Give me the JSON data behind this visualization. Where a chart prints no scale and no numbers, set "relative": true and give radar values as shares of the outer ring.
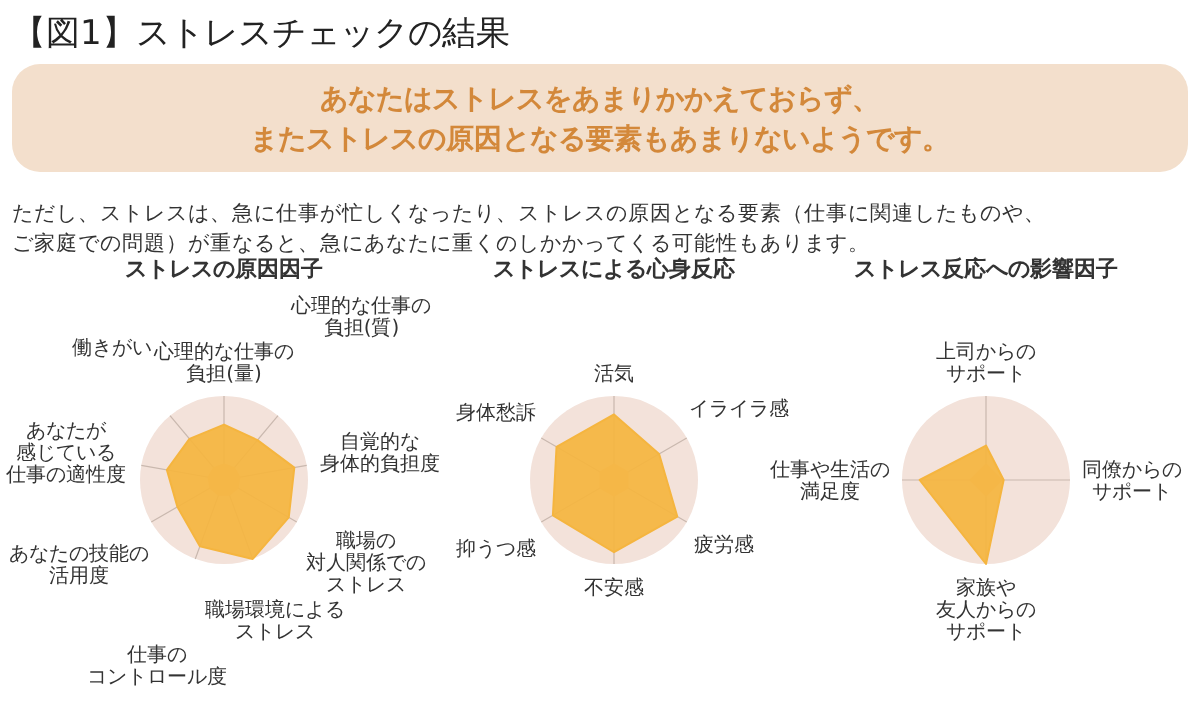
{
  "chart_data": [
    {
      "type": "other",
      "title": "【図1】ストレスチェックの結果",
      "subtitle": "あなたはストレスをあまりかかえておらず、またストレスの原因となる要素もあまりないようです。",
      "annotations": [
        "ただし、ストレスは、急に仕事が忙しくなったり、ストレスの原因となる要素（仕事に関連したものや、ご家庭での問題）が重なると、急にあなたに重くのしかかってくる可能性もあります。"
      ]
    },
    {
      "type": "radar",
      "title": "ストレスの原因因子",
      "relative": true,
      "grid": true,
      "categories": [
        "心理的な仕事の負担(量)",
        "心理的な仕事の負担(質)",
        "自覚的な身体的負担度",
        "職場の対人関係でのストレス",
        "職場環境によるストレス",
        "仕事のコントロール度",
        "あなたの技能の活用度",
        "あなたが感じている仕事の適性度",
        "働きがい"
      ],
      "series": [
        {
          "color": "#f5b53f",
          "values": [
            0.66,
            0.62,
            0.85,
            0.89,
            1.0,
            0.84,
            0.64,
            0.69,
            0.64
          ]
        }
      ]
    },
    {
      "type": "radar",
      "title": "ストレスによる心身反応",
      "relative": true,
      "grid": true,
      "categories": [
        "活気",
        "イライラ感",
        "疲労感",
        "不安感",
        "抑うつ感",
        "身体愁訴"
      ],
      "series": [
        {
          "color": "#f5b53f",
          "values": [
            0.78,
            0.62,
            0.87,
            0.86,
            0.84,
            0.79
          ]
        }
      ]
    },
    {
      "type": "radar",
      "title": "ストレス反応への影響因子",
      "relative": true,
      "grid": true,
      "categories": [
        "上司からのサポート",
        "同僚からのサポート",
        "家族や友人からのサポート",
        "仕事や生活の満足度"
      ],
      "series": [
        {
          "color": "#f5b53f",
          "values": [
            0.41,
            0.21,
            1.0,
            0.79
          ]
        }
      ]
    }
  ]
}
